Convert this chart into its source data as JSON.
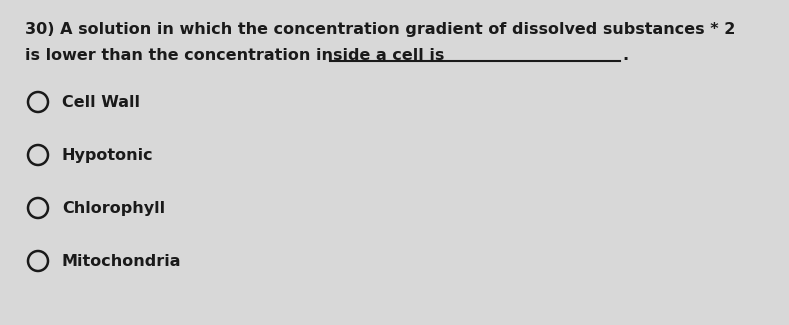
{
  "background_color": "#d8d8d8",
  "question_number": "30)",
  "question_line1": " A solution in which the concentration gradient of dissolved substances * 2",
  "question_line2": "is lower than the concentration inside a cell is",
  "options": [
    "Cell Wall",
    "Hypotonic",
    "Chlorophyll",
    "Mitochondria"
  ],
  "font_size_question": 11.5,
  "font_size_options": 11.5,
  "text_color": "#1a1a1a",
  "underline_color": "#1a1a1a"
}
